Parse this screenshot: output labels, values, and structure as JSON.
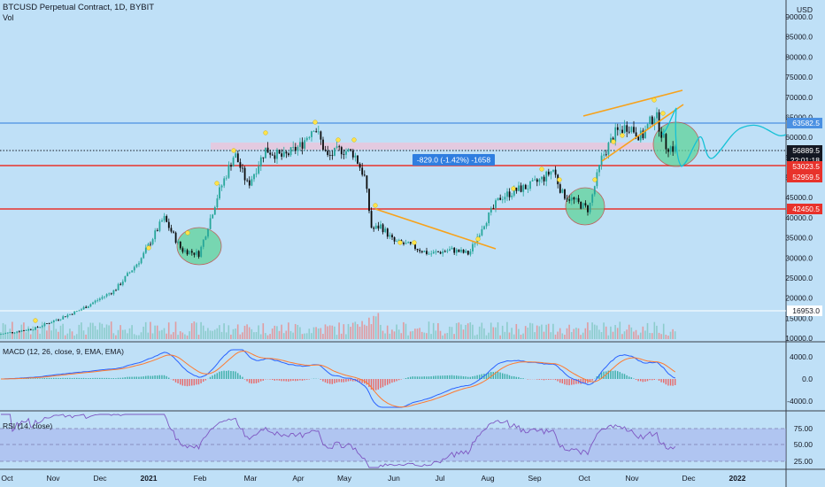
{
  "header": {
    "symbol_title": "BTCUSD Perpetual Contract, 1D, BYBIT",
    "vol_label": "Vol",
    "currency": "USD"
  },
  "colors": {
    "background": "#bfe0f7",
    "up_candle": "#26a69a",
    "down_candle": "#0b0b0b",
    "red_line": "#e8322b",
    "blue_line": "#4a90e2",
    "orange_line": "#f7a21b",
    "pink_zone": "#e9c6dc",
    "green_circle": "#5fd39a",
    "macd_line": "#2962ff",
    "signal_line": "#ff7a2f",
    "rsi_line": "#7e57c2",
    "projection": "#15c1d6"
  },
  "price_axis": {
    "ticks": [
      "90000.0",
      "85000.0",
      "80000.0",
      "75000.0",
      "70000.0",
      "65000.0",
      "60000.0",
      "55000.0",
      "50000.0",
      "45000.0",
      "40000.0",
      "35000.0",
      "30000.0",
      "25000.0",
      "20000.0",
      "15000.0",
      "10000.0"
    ],
    "badges": [
      {
        "text": "63582.5",
        "color": "#4a90e2"
      },
      {
        "text": "56889.5",
        "color": "#131722"
      },
      {
        "text": "22:01:18",
        "color": "#131722"
      },
      {
        "text": "53023.5",
        "color": "#e8322b"
      },
      {
        "text": "52959.5",
        "color": "#e8322b"
      },
      {
        "text": "42450.5",
        "color": "#e8322b"
      },
      {
        "text": "16953.0",
        "color": "#ffffff"
      }
    ]
  },
  "measure_label": "-829.0 (-1.42%) -1658",
  "macd": {
    "title": "MACD (12, 26, close, 9, EMA, EMA)",
    "ticks": [
      "4000.0",
      "0.0",
      "-4000.0"
    ]
  },
  "rsi": {
    "title": "RSI (14, close)",
    "ticks": [
      "75.00",
      "50.00",
      "25.00"
    ]
  },
  "time_axis": {
    "labels": [
      "Oct",
      "Nov",
      "Dec",
      "2021",
      "Feb",
      "Mar",
      "Apr",
      "May",
      "Jun",
      "Jul",
      "Aug",
      "Sep",
      "Oct",
      "Nov",
      "Dec",
      "2022"
    ]
  },
  "chart_data": {
    "type": "candlestick",
    "title": "BTCUSD Perpetual Contract, 1D, BYBIT",
    "y_unit": "USD",
    "ylim": [
      10000,
      90000
    ],
    "x_range": [
      "2020-10",
      "2022-01"
    ],
    "key_levels": [
      {
        "label": "63582.5",
        "value": 63582.5,
        "style": "blue horizontal"
      },
      {
        "label": "53023.5",
        "value": 53023.5,
        "style": "red horizontal"
      },
      {
        "label": "42450.5",
        "value": 42450.5,
        "style": "red horizontal"
      },
      {
        "label": "16953.0",
        "value": 16953.0,
        "style": "white horizontal"
      }
    ],
    "last_price": 56889.5,
    "approx_closes": [
      {
        "date": "2020-10",
        "value": 11500
      },
      {
        "date": "2020-11",
        "value": 14000
      },
      {
        "date": "2020-12",
        "value": 19000
      },
      {
        "date": "2021-01",
        "value": 33000
      },
      {
        "date": "2021-02",
        "value": 45000
      },
      {
        "date": "2021-03",
        "value": 57000
      },
      {
        "date": "2021-04",
        "value": 58000
      },
      {
        "date": "2021-05",
        "value": 37000
      },
      {
        "date": "2021-06",
        "value": 35000
      },
      {
        "date": "2021-07",
        "value": 41000
      },
      {
        "date": "2021-08",
        "value": 47000
      },
      {
        "date": "2021-09",
        "value": 43000
      },
      {
        "date": "2021-10",
        "value": 61000
      },
      {
        "date": "2021-11",
        "value": 57000
      }
    ],
    "macd_range": [
      -6000,
      6000
    ],
    "rsi_range": [
      15,
      90
    ],
    "rsi_levels": [
      70,
      50,
      30
    ],
    "grid": false
  }
}
